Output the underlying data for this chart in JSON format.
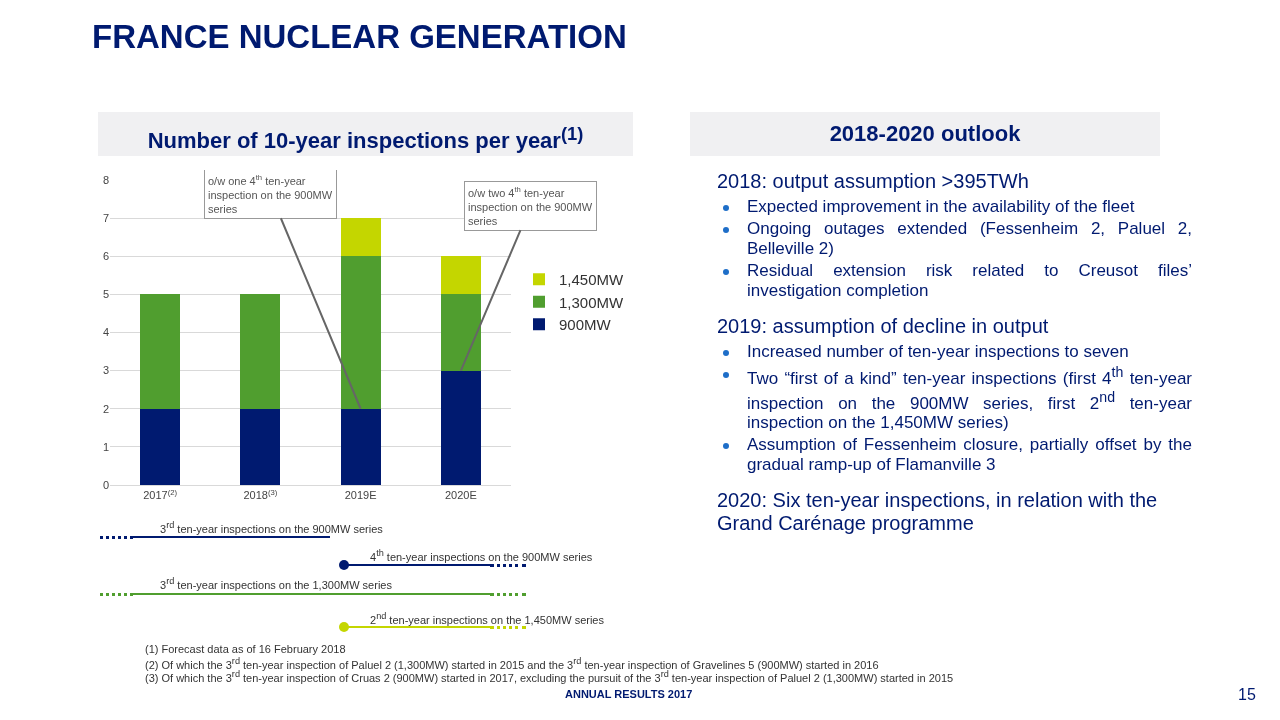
{
  "chart_data": [
    {
      "type": "bar",
      "stacked": true,
      "title": "FRANCE NUCLEAR GENERATION",
      "subtitle": "Number of 10-year inspections per year$^{(1)}$",
      "categories": [
        "2017$^{(2)}$",
        "2018$^{(3)}$",
        "2019E",
        "2020E"
      ],
      "series": [
        {
          "name": "900MW",
          "color": "#001a70",
          "values": [
            2,
            2,
            2,
            3
          ]
        },
        {
          "name": "1,300MW",
          "color": "#509e2f",
          "values": [
            3,
            3,
            4,
            2
          ]
        },
        {
          "name": "1,450MW",
          "color": "#c4d600",
          "values": [
            0,
            0,
            1,
            1
          ]
        }
      ],
      "ylim": [
        0,
        8
      ],
      "yticks": [
        0,
        1,
        2,
        3,
        4,
        5,
        6,
        7,
        8
      ],
      "grid": "y",
      "legend": "right",
      "annotations": [
        {
          "text": "o/w one 4$^{th}$ ten-year inspection on the 900MW series",
          "x": "2019E",
          "y": 2
        },
        {
          "text": "o/w two 4$^{th}$ ten-year inspection on the 900MW series",
          "x": "2020E",
          "y": 3
        },
        "3$^{rd}$ ten-year inspections on the 900MW series",
        "4$^{th}$ ten-year inspections on the 900MW series",
        "3$^{rd}$ ten-year inspections on the 1,300MW series",
        "2$^{nd}$ ten-year inspections on the 1,450MW series",
        "(1)   Forecast data as of 16 February 2018",
        "(2)   Of which the 3$^{rd}$ ten-year inspection of Paluel 2 (1,300MW) started in 2015 and the 3$^{rd}$ ten-year inspection of Gravelines 5 (900MW) started in 2016",
        "(3)   Of which the 3$^{rd}$ ten-year inspection of Cruas 2 (900MW) started in 2017, excluding the pursuit of the 3$^{rd}$ ten-year inspection of Paluel 2 (1,300MW) started in 2015",
        "ANNUAL RESULTS 2017",
        "15"
      ]
    },
    {
      "type": "other",
      "title": "2018-2020 outlook",
      "annotations": [
        "2018: output assumption >395TWh",
        "Expected improvement in the availability of the fleet",
        "Ongoing outages extended (Fessenheim 2, Paluel 2, Belleville 2)",
        "Residual extension risk related to Creusot files’ investigation completion",
        "2019: assumption of decline in output",
        "Increased number of ten-year inspections to seven",
        "Two “first of a kind” ten-year inspections (first 4$^{th}$ ten-year inspection on the 900MW series, first 2$^{nd}$ ten-year inspection on the 1,450MW series)",
        "Assumption of Fessenheim closure, partially offset by the gradual ramp-up of Flamanville 3",
        "2020: Six ten-year inspections, in relation with the Grand Carénage programme"
      ]
    }
  ]
}
